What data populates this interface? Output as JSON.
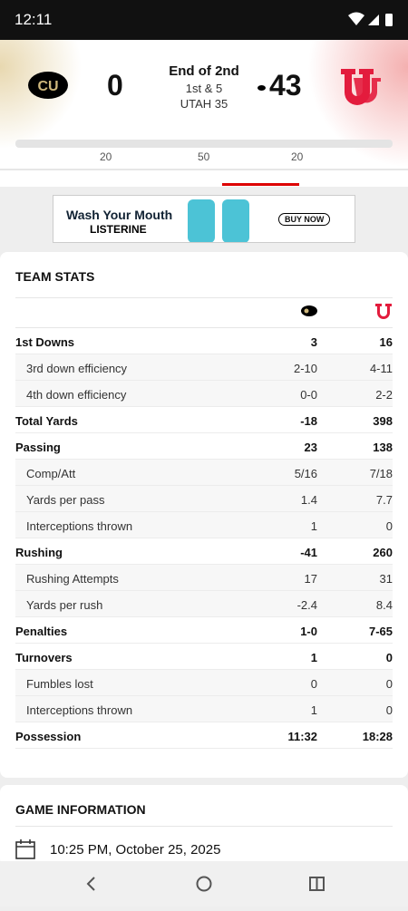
{
  "status_bar": {
    "time": "12:11"
  },
  "scoreboard": {
    "left_score": "0",
    "status": "End of 2nd",
    "down": "1st & 5",
    "position": "UTAH 35",
    "right_score": "43"
  },
  "field": {
    "yard_labels": [
      "20",
      "50",
      "20"
    ]
  },
  "ad": {
    "headline": "Wash Your Mouth",
    "brand": "LISTERINE",
    "cta": "BUY NOW"
  },
  "team_stats": {
    "title": "TEAM STATS",
    "groups": [
      {
        "label": "1st Downs",
        "values": [
          "3",
          "16"
        ],
        "rows": [
          {
            "label": "3rd down efficiency",
            "values": [
              "2-10",
              "4-11"
            ]
          },
          {
            "label": "4th down efficiency",
            "values": [
              "0-0",
              "2-2"
            ]
          }
        ]
      },
      {
        "label": "Total Yards",
        "values": [
          "-18",
          "398"
        ],
        "rows": []
      },
      {
        "label": "Passing",
        "values": [
          "23",
          "138"
        ],
        "rows": [
          {
            "label": "Comp/Att",
            "values": [
              "5/16",
              "7/18"
            ]
          },
          {
            "label": "Yards per pass",
            "values": [
              "1.4",
              "7.7"
            ]
          },
          {
            "label": "Interceptions thrown",
            "values": [
              "1",
              "0"
            ]
          }
        ]
      },
      {
        "label": "Rushing",
        "values": [
          "-41",
          "260"
        ],
        "rows": [
          {
            "label": "Rushing Attempts",
            "values": [
              "17",
              "31"
            ]
          },
          {
            "label": "Yards per rush",
            "values": [
              "-2.4",
              "8.4"
            ]
          }
        ]
      },
      {
        "label": "Penalties",
        "values": [
          "1-0",
          "7-65"
        ],
        "rows": []
      },
      {
        "label": "Turnovers",
        "values": [
          "1",
          "0"
        ],
        "rows": [
          {
            "label": "Fumbles lost",
            "values": [
              "0",
              "0"
            ]
          },
          {
            "label": "Interceptions thrown",
            "values": [
              "1",
              "0"
            ]
          }
        ]
      },
      {
        "label": "Possession",
        "values": [
          "11:32",
          "18:28"
        ],
        "rows": []
      }
    ]
  },
  "game_info": {
    "title": "GAME INFORMATION",
    "datetime": "10:25 PM, October 25, 2025"
  }
}
